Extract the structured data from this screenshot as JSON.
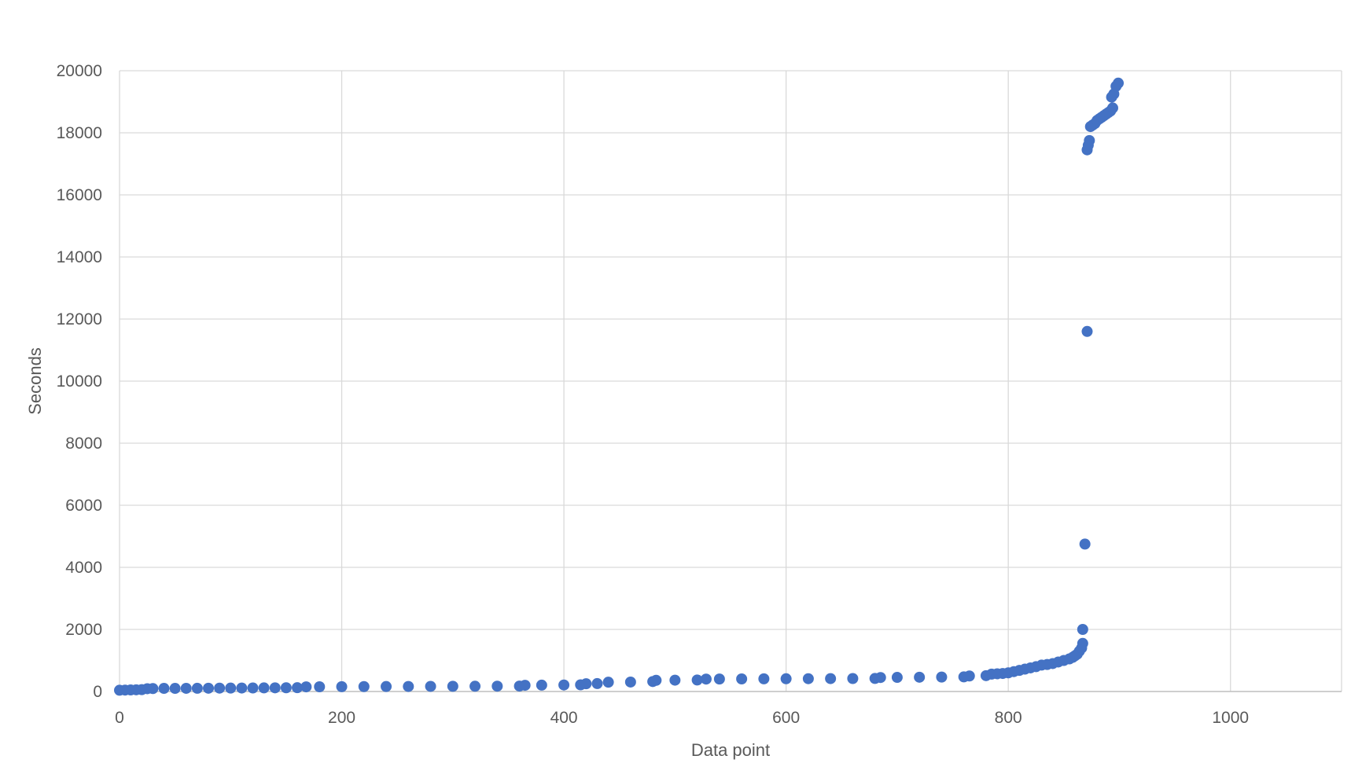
{
  "chart_data": {
    "type": "scatter",
    "title": "",
    "xlabel": "Data point",
    "ylabel": "Seconds",
    "xlim": [
      0,
      1100
    ],
    "ylim": [
      0,
      20000
    ],
    "x_ticks": [
      0,
      200,
      400,
      600,
      800,
      1000
    ],
    "y_ticks": [
      0,
      2000,
      4000,
      6000,
      8000,
      10000,
      12000,
      14000,
      16000,
      18000,
      20000
    ],
    "grid": true,
    "legend": "none",
    "marker_color": "#4472C4",
    "series": [
      {
        "points": [
          [
            0,
            40
          ],
          [
            5,
            45
          ],
          [
            10,
            50
          ],
          [
            15,
            55
          ],
          [
            20,
            60
          ],
          [
            25,
            90
          ],
          [
            30,
            95
          ],
          [
            40,
            100
          ],
          [
            50,
            100
          ],
          [
            60,
            102
          ],
          [
            70,
            104
          ],
          [
            80,
            106
          ],
          [
            90,
            108
          ],
          [
            100,
            110
          ],
          [
            110,
            112
          ],
          [
            120,
            114
          ],
          [
            130,
            116
          ],
          [
            140,
            118
          ],
          [
            150,
            120
          ],
          [
            160,
            122
          ],
          [
            168,
            150
          ],
          [
            180,
            152
          ],
          [
            200,
            155
          ],
          [
            220,
            158
          ],
          [
            240,
            160
          ],
          [
            260,
            162
          ],
          [
            280,
            165
          ],
          [
            300,
            168
          ],
          [
            320,
            170
          ],
          [
            340,
            172
          ],
          [
            360,
            175
          ],
          [
            365,
            200
          ],
          [
            380,
            205
          ],
          [
            400,
            210
          ],
          [
            415,
            215
          ],
          [
            420,
            250
          ],
          [
            430,
            255
          ],
          [
            440,
            300
          ],
          [
            460,
            305
          ],
          [
            480,
            320
          ],
          [
            483,
            360
          ],
          [
            500,
            365
          ],
          [
            520,
            370
          ],
          [
            528,
            400
          ],
          [
            540,
            402
          ],
          [
            560,
            405
          ],
          [
            580,
            408
          ],
          [
            600,
            410
          ],
          [
            620,
            412
          ],
          [
            640,
            415
          ],
          [
            660,
            418
          ],
          [
            680,
            420
          ],
          [
            685,
            450
          ],
          [
            700,
            455
          ],
          [
            720,
            460
          ],
          [
            740,
            465
          ],
          [
            760,
            470
          ],
          [
            765,
            500
          ],
          [
            780,
            510
          ],
          [
            785,
            560
          ],
          [
            790,
            570
          ],
          [
            795,
            580
          ],
          [
            800,
            600
          ],
          [
            805,
            640
          ],
          [
            810,
            680
          ],
          [
            815,
            720
          ],
          [
            820,
            760
          ],
          [
            825,
            800
          ],
          [
            830,
            850
          ],
          [
            835,
            870
          ],
          [
            840,
            900
          ],
          [
            845,
            950
          ],
          [
            850,
            1000
          ],
          [
            855,
            1050
          ],
          [
            858,
            1100
          ],
          [
            860,
            1150
          ],
          [
            862,
            1200
          ],
          [
            864,
            1300
          ],
          [
            866,
            1400
          ],
          [
            867,
            1550
          ],
          [
            867,
            2000
          ],
          [
            869,
            4750
          ],
          [
            871,
            11600
          ],
          [
            871,
            17450
          ],
          [
            872,
            17600
          ],
          [
            873,
            17750
          ],
          [
            874,
            18200
          ],
          [
            876,
            18250
          ],
          [
            878,
            18300
          ],
          [
            880,
            18400
          ],
          [
            882,
            18450
          ],
          [
            884,
            18500
          ],
          [
            886,
            18550
          ],
          [
            888,
            18600
          ],
          [
            890,
            18650
          ],
          [
            892,
            18700
          ],
          [
            894,
            18800
          ],
          [
            893,
            19150
          ],
          [
            895,
            19250
          ],
          [
            897,
            19500
          ],
          [
            899,
            19600
          ]
        ]
      }
    ]
  }
}
